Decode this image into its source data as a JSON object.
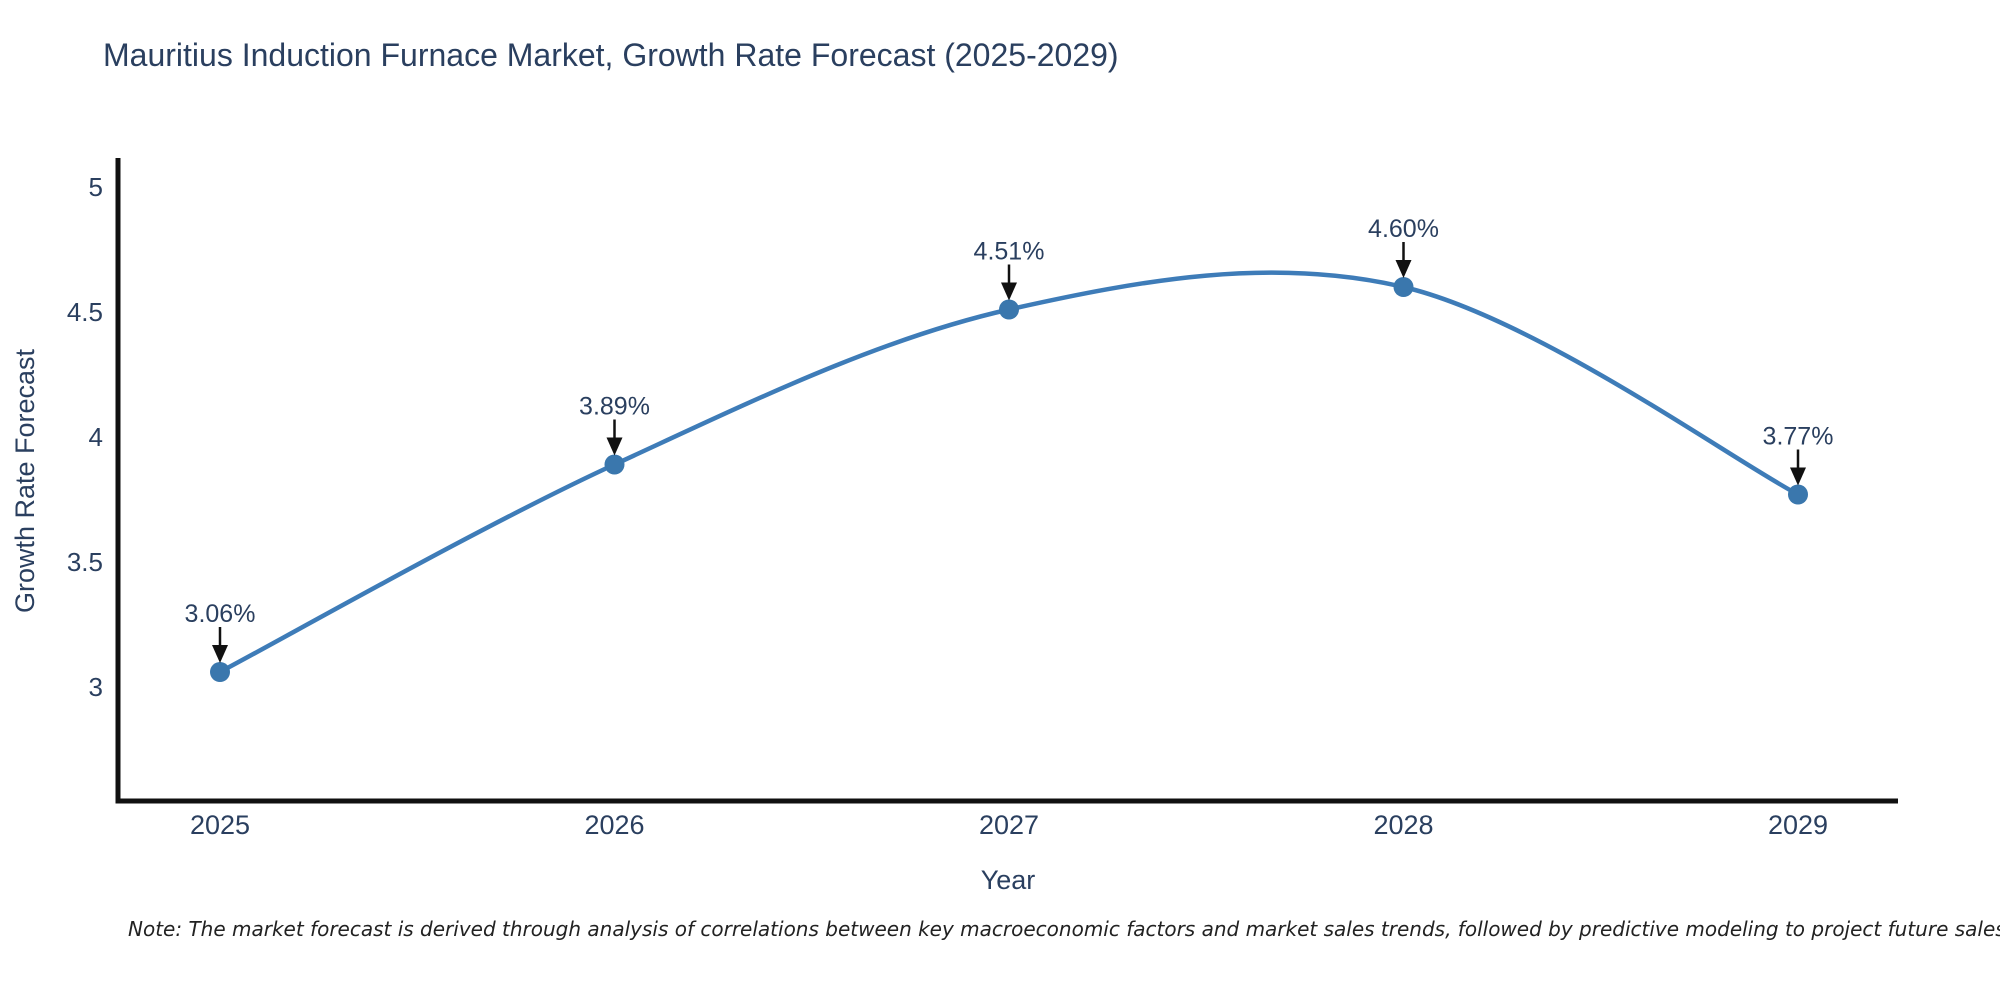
{
  "chart_data": {
    "type": "line",
    "title": "Mauritius Induction Furnace Market, Growth Rate Forecast (2025-2029)",
    "xlabel": "Year",
    "ylabel": "Growth Rate Forecast",
    "categories": [
      2025,
      2026,
      2027,
      2028,
      2029
    ],
    "x": [
      2025,
      2026,
      2027,
      2028,
      2029
    ],
    "y": [
      3.06,
      3.89,
      4.51,
      4.6,
      3.77
    ],
    "labels": [
      "3.06%",
      "3.89%",
      "4.51%",
      "4.60%",
      "3.77%"
    ],
    "y_ticks": [
      3,
      3.5,
      4,
      4.5,
      5
    ],
    "ylim": [
      2.54,
      5.11
    ],
    "xlim": [
      2024.73,
      2029.25
    ],
    "line_shape": "spline",
    "grid": false,
    "legend_position": "none",
    "line_color": "#3e7cb8",
    "marker_color": "#3a77ad",
    "axis_color": "#111111",
    "annotation_color": "#111111",
    "text_color": "#2a3f5f",
    "note": "Note: The market forecast is derived through analysis of correlations between key macroeconomic factors and market sales trends, followed by predictive modeling to project future sales"
  }
}
